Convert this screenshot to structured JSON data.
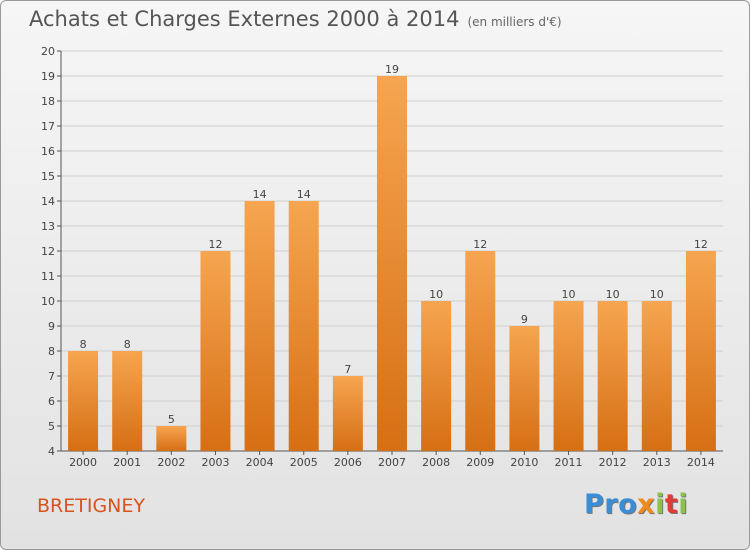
{
  "header": {
    "title": "Achats et Charges Externes 2000 à 2014",
    "subtitle": "(en milliers d'€)"
  },
  "footer": {
    "commune": "BRETIGNEY",
    "logo": {
      "p1": "Pro",
      "x": "x",
      "i": "i",
      "t": "t",
      "i2": "i"
    }
  },
  "colors": {
    "bar_top": "#f6a550",
    "bar_bottom": "#d66f14",
    "grid": "#cfcfcf",
    "commune": "#d9531e",
    "logo_pro": "#3a8ed8",
    "logo_x": "#f08a1c",
    "logo_i": "#8bc34a",
    "logo_t": "#e53935"
  },
  "chart_data": {
    "type": "bar",
    "categories": [
      "2000",
      "2001",
      "2002",
      "2003",
      "2004",
      "2005",
      "2006",
      "2007",
      "2008",
      "2009",
      "2010",
      "2011",
      "2012",
      "2013",
      "2014"
    ],
    "values": [
      8,
      8,
      5,
      12,
      14,
      14,
      7,
      19,
      10,
      12,
      9,
      10,
      10,
      10,
      12
    ],
    "ylim": [
      4,
      20
    ],
    "yticks": [
      4,
      5,
      6,
      7,
      8,
      9,
      10,
      11,
      12,
      13,
      14,
      15,
      16,
      17,
      18,
      19,
      20
    ],
    "grid": true,
    "xlabel": "",
    "ylabel": ""
  }
}
